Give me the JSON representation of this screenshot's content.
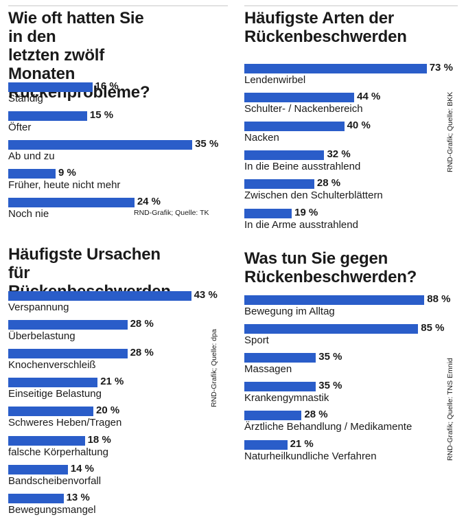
{
  "colors": {
    "bar": "#2a5dc9",
    "text": "#1a1a1a"
  },
  "chart_data": [
    {
      "type": "bar",
      "orientation": "horizontal",
      "title": "Wie oft hatten Sie in den\nletzten zwölf Monaten\nRückenprobleme?",
      "categories": [
        "Ständig",
        "Öfter",
        "Ab und zu",
        "Früher, heute nicht mehr",
        "Noch nie"
      ],
      "values": [
        16,
        15,
        35,
        9,
        24
      ],
      "value_labels": [
        "16 %",
        "15 %",
        "35 %",
        "9 %",
        "24 %"
      ],
      "unit": "%",
      "source": "RND-Grafik; Quelle: TK"
    },
    {
      "type": "bar",
      "orientation": "horizontal",
      "title": "Häufigste Arten der\nRückenbeschwerden",
      "categories": [
        "Lendenwirbel",
        "Schulter- / Nackenbereich",
        "Nacken",
        "In die Beine ausstrahlend",
        "Zwischen den Schulterblättern",
        "In die Arme ausstrahlend"
      ],
      "values": [
        73,
        44,
        40,
        32,
        28,
        19
      ],
      "value_labels": [
        "73 %",
        "44 %",
        "40 %",
        "32 %",
        "28 %",
        "19 %"
      ],
      "unit": "%",
      "source": "RND-Grafik; Quelle: BKK"
    },
    {
      "type": "bar",
      "orientation": "horizontal",
      "title": "Häufigste Ursachen für\nRückenbeschwerden",
      "categories": [
        "Verspannung",
        "Überbelastung",
        "Knochenverschleiß",
        "Einseitige Belastung",
        "Schweres Heben/Tragen",
        "falsche Körperhaltung",
        "Bandscheibenvorfall",
        "Bewegungsmangel"
      ],
      "values": [
        43,
        28,
        28,
        21,
        20,
        18,
        14,
        13
      ],
      "value_labels": [
        "43 %",
        "28 %",
        "28 %",
        "21 %",
        "20 %",
        "18 %",
        "14 %",
        "13 %"
      ],
      "unit": "%",
      "source": "RND-Grafik; Quelle: dpa"
    },
    {
      "type": "bar",
      "orientation": "horizontal",
      "title": "Was tun Sie gegen\nRückenbeschwerden?",
      "categories": [
        "Bewegung im Alltag",
        "Sport",
        "Massagen",
        "Krankengymnastik",
        "Ärztliche Behandlung / Medikamente",
        "Naturheilkundliche Verfahren"
      ],
      "values": [
        88,
        85,
        35,
        35,
        28,
        21
      ],
      "value_labels": [
        "88 %",
        "85 %",
        "35 %",
        "35 %",
        "28 %",
        "21 %"
      ],
      "unit": "%",
      "source": "RND-Grafik; Quelle: TNS Emnid"
    }
  ]
}
